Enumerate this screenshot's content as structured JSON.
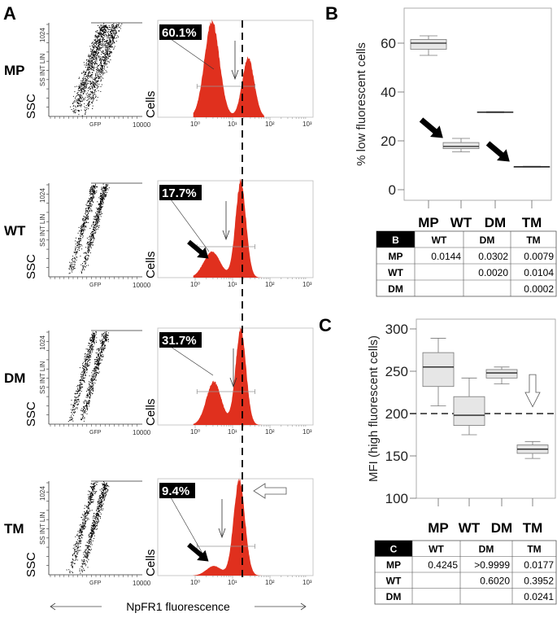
{
  "panel_a": {
    "label": "A",
    "rows": [
      {
        "name": "MP",
        "percent": "60.1%"
      },
      {
        "name": "WT",
        "percent": "17.7%"
      },
      {
        "name": "DM",
        "percent": "31.7%"
      },
      {
        "name": "TM",
        "percent": "9.4%"
      }
    ],
    "scatter": {
      "ylabel_main": "SSC",
      "ylabel_sub": "SS INT LIN",
      "ytick": "1024",
      "xlabel": "GFP",
      "xtick": "10000"
    },
    "histogram": {
      "ylabel": "Cells",
      "xticks": [
        "10⁰",
        "10¹",
        "10²",
        "10³"
      ]
    },
    "bottom_label": "NpFR1 fluorescence",
    "colors": {
      "histogram_fill": "#e0301e"
    }
  },
  "chart_data": [
    {
      "type": "box",
      "panel": "B",
      "ylabel": "% low fluorescent cells",
      "categories": [
        "MP",
        "WT",
        "DM",
        "TM"
      ],
      "yticks": [
        "0",
        "20",
        "40",
        "60"
      ],
      "ylim": [
        -3,
        75
      ],
      "boxes": [
        {
          "min": 55,
          "q1": 57.5,
          "median": 60,
          "q3": 61.5,
          "max": 63
        },
        {
          "min": 15.5,
          "q1": 16.8,
          "median": 17.7,
          "q3": 19.3,
          "max": 21
        },
        {
          "min": 31.5,
          "q1": 31.6,
          "median": 31.7,
          "q3": 31.9,
          "max": 32
        },
        {
          "min": 9.2,
          "q1": 9.3,
          "median": 9.4,
          "q3": 9.5,
          "max": 9.6
        }
      ]
    },
    {
      "type": "box",
      "panel": "C",
      "ylabel": "MFI (high fluorescent cells)",
      "categories": [
        "MP",
        "WT",
        "DM",
        "TM"
      ],
      "yticks": [
        "100",
        "150",
        "200",
        "250",
        "300"
      ],
      "ylim": [
        90,
        303
      ],
      "reference_line": 200,
      "boxes": [
        {
          "min": 209,
          "q1": 232,
          "median": 255,
          "q3": 272,
          "max": 289
        },
        {
          "min": 175,
          "q1": 186,
          "median": 198,
          "q3": 220,
          "max": 242
        },
        {
          "min": 235,
          "q1": 242,
          "median": 248,
          "q3": 252,
          "max": 255
        },
        {
          "min": 147,
          "q1": 153,
          "median": 158,
          "q3": 163,
          "max": 167
        }
      ]
    }
  ],
  "table_b": {
    "corner": "B",
    "headers": [
      "WT",
      "DM",
      "TM"
    ],
    "rows": [
      {
        "label": "MP",
        "cells": [
          "0.0144",
          "0.0302",
          "0.0079"
        ]
      },
      {
        "label": "WT",
        "cells": [
          "",
          "0.0020",
          "0.0104"
        ]
      },
      {
        "label": "DM",
        "cells": [
          "",
          "",
          "0.0002"
        ]
      }
    ]
  },
  "table_c": {
    "corner": "C",
    "headers": [
      "WT",
      "DM",
      "TM"
    ],
    "rows": [
      {
        "label": "MP",
        "cells": [
          "0.4245",
          ">0.9999",
          "0.0177"
        ]
      },
      {
        "label": "WT",
        "cells": [
          "",
          "0.6020",
          "0.3952"
        ]
      },
      {
        "label": "DM",
        "cells": [
          "",
          "",
          "0.0241"
        ]
      }
    ]
  }
}
